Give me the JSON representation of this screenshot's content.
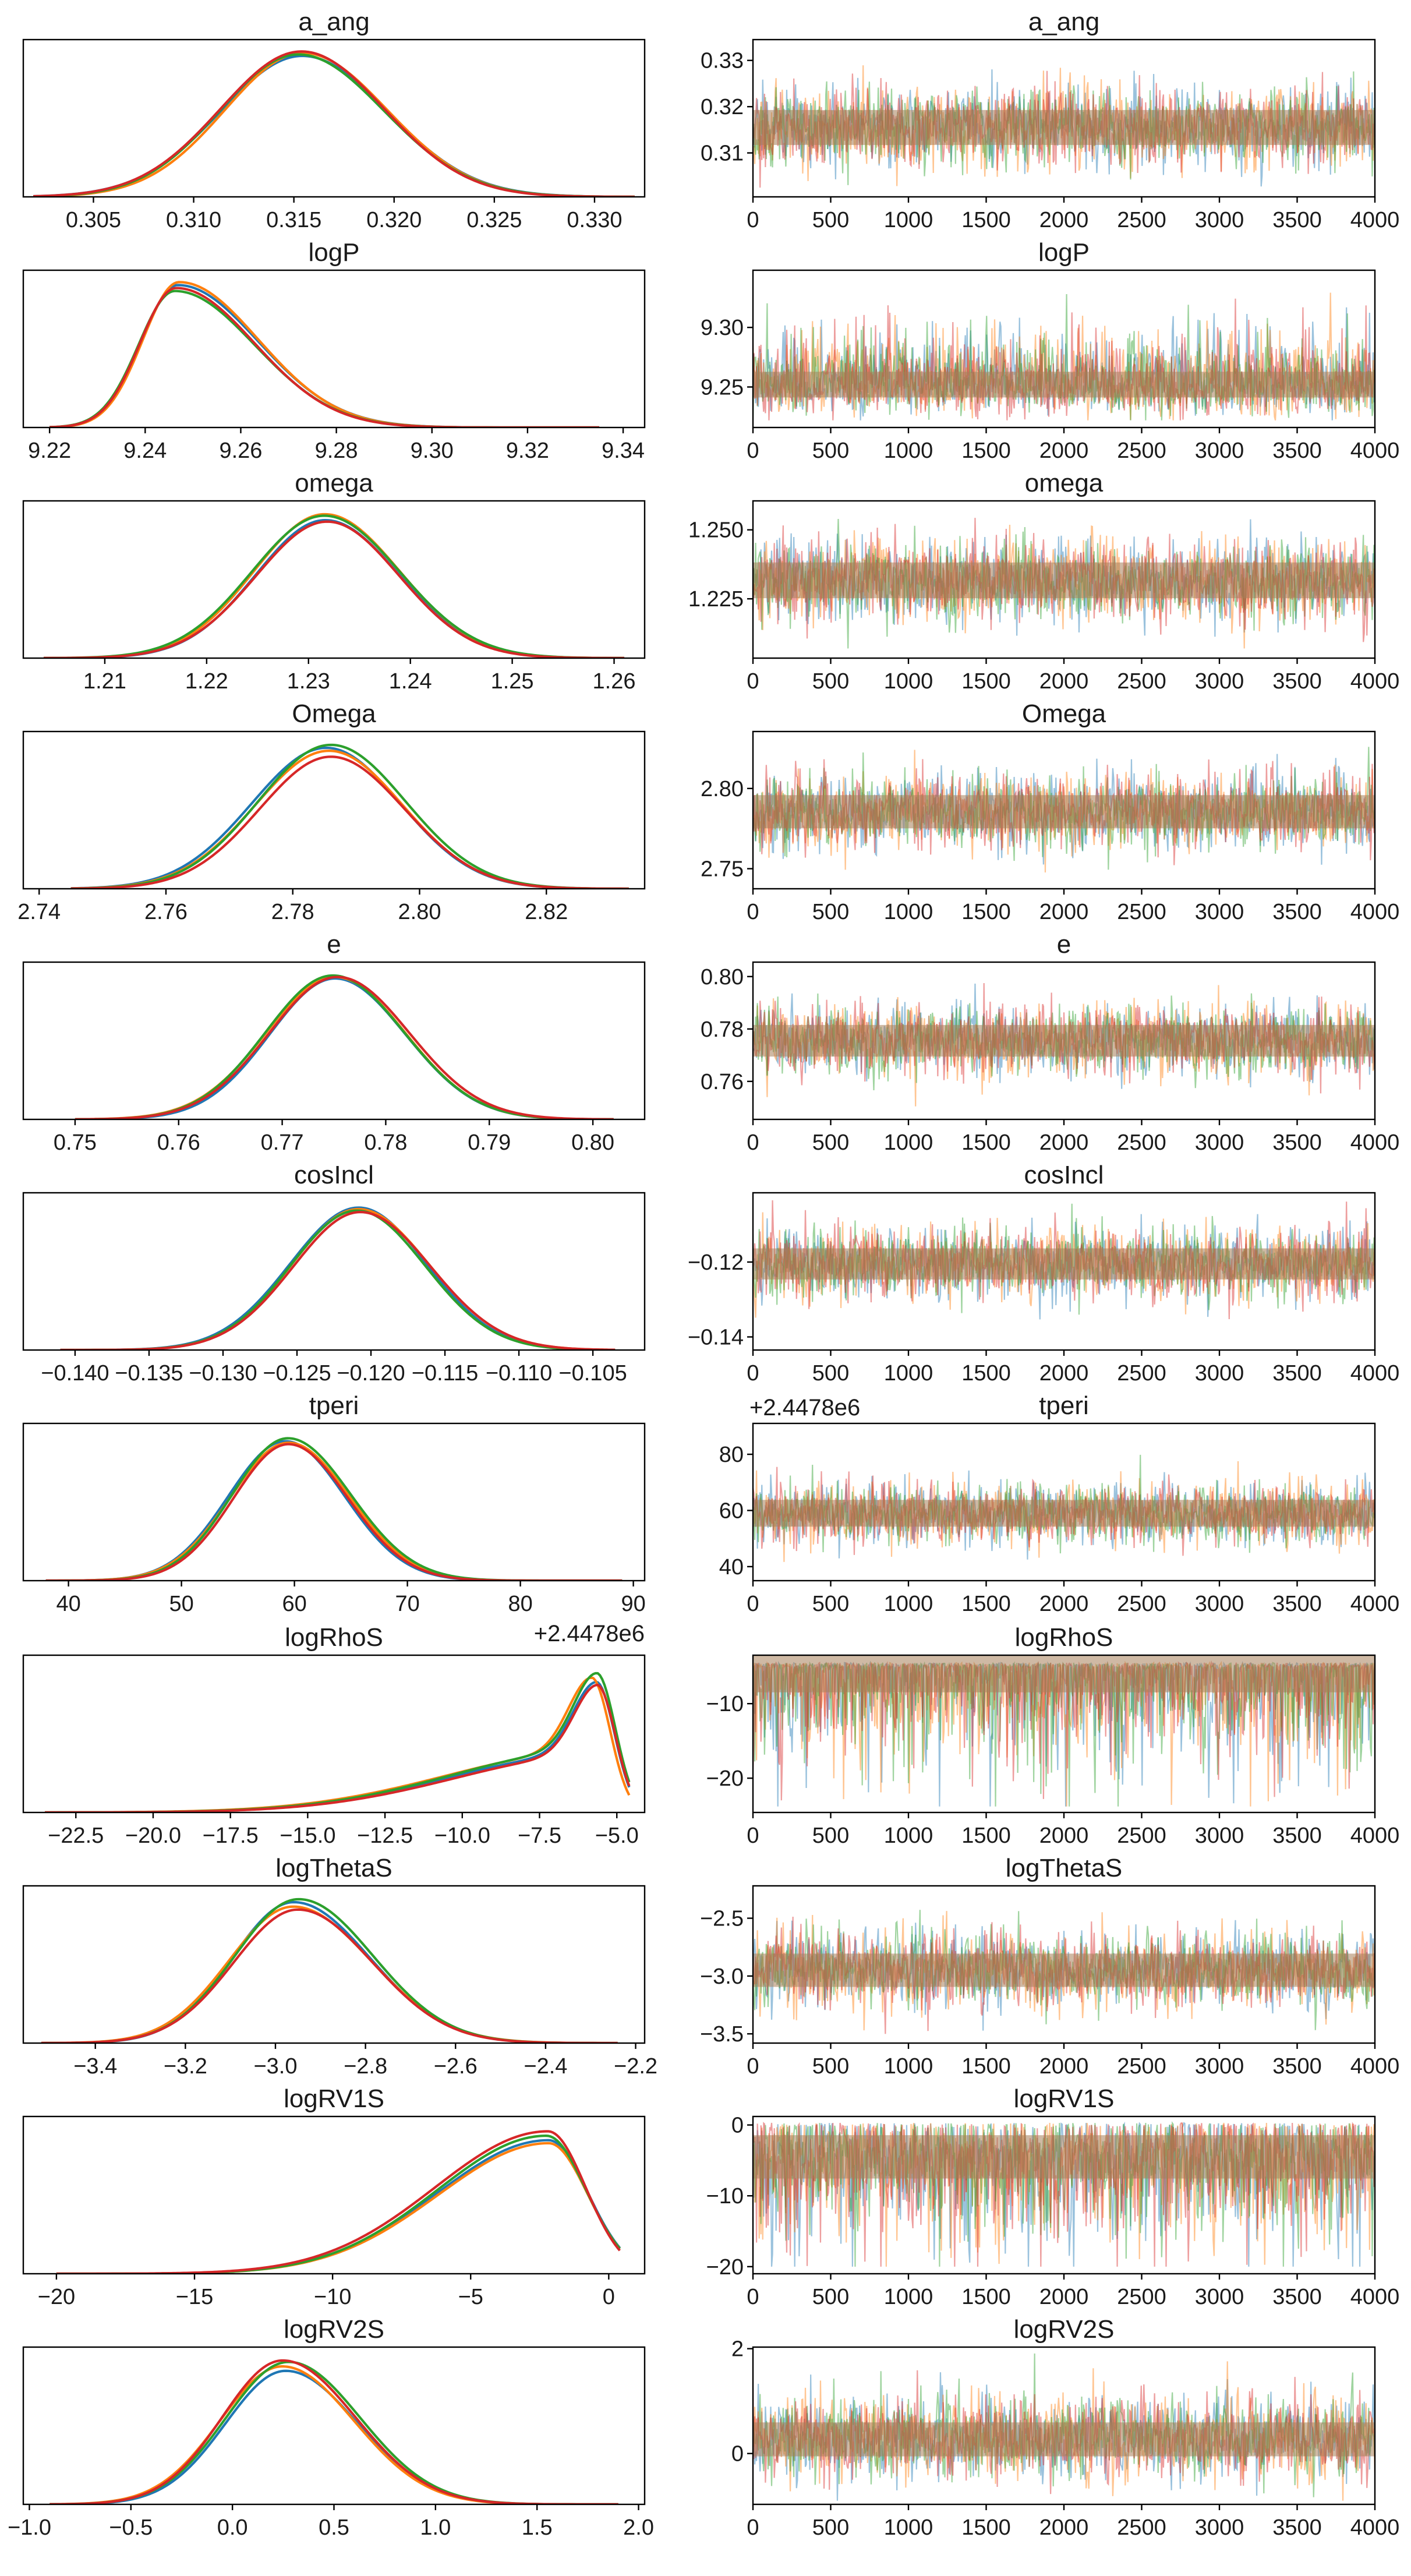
{
  "figure": {
    "kde_colors": [
      "#1f77b4",
      "#ff7f0e",
      "#2ca02c",
      "#d62728"
    ],
    "trace_colors": [
      "#1f77b4",
      "#ff7f0e",
      "#2ca02c",
      "#d62728"
    ],
    "trace_overlay_color": "#a8805a"
  },
  "chart_data": [
    {
      "type": "line",
      "panel": "kde",
      "title": "a_ang",
      "xlim": [
        0.3015,
        0.3325
      ],
      "xticks": [
        0.305,
        0.31,
        0.315,
        0.32,
        0.325,
        0.33
      ],
      "xtick_labels": [
        "0.305",
        "0.310",
        "0.315",
        "0.320",
        "0.325",
        "0.330"
      ],
      "offset_text": "",
      "dist": {
        "mode": 0.3153,
        "left_width": 0.004,
        "right_width": 0.0042,
        "xmin": 0.302,
        "xmax": 0.332
      },
      "series_peaks": [
        0.95,
        0.97,
        0.96,
        0.98
      ]
    },
    {
      "type": "line",
      "panel": "trace",
      "title": "a_ang",
      "xlim": [
        0,
        4000
      ],
      "ylim": [
        0.3005,
        0.3345
      ],
      "xticks": [
        0,
        500,
        1000,
        1500,
        2000,
        2500,
        3000,
        3500,
        4000
      ],
      "xtick_labels": [
        "0",
        "500",
        "1000",
        "1500",
        "2000",
        "2500",
        "3000",
        "3500",
        "4000"
      ],
      "yticks": [
        0.31,
        0.32,
        0.33
      ],
      "ytick_labels": [
        "0.31",
        "0.32",
        "0.33"
      ],
      "offset_text": "",
      "trace": {
        "center": 0.3155,
        "sd": 0.0042,
        "clip_min": 0.3025,
        "clip_max": 0.333,
        "skew": 0
      }
    },
    {
      "type": "line",
      "panel": "kde",
      "title": "logP",
      "xlim": [
        9.2145,
        9.3445
      ],
      "xticks": [
        9.22,
        9.24,
        9.26,
        9.28,
        9.3,
        9.32,
        9.34
      ],
      "xtick_labels": [
        "9.22",
        "9.24",
        "9.26",
        "9.28",
        "9.30",
        "9.32",
        "9.34"
      ],
      "offset_text": "",
      "dist": {
        "mode": 9.2465,
        "left_width": 0.0075,
        "right_width": 0.0165,
        "xmin": 9.22,
        "xmax": 9.335
      },
      "series_peaks": [
        0.96,
        0.98,
        0.92,
        0.94
      ]
    },
    {
      "type": "line",
      "panel": "trace",
      "title": "logP",
      "xlim": [
        0,
        4000
      ],
      "ylim": [
        9.216,
        9.348
      ],
      "xticks": [
        0,
        500,
        1000,
        1500,
        2000,
        2500,
        3000,
        3500,
        4000
      ],
      "xtick_labels": [
        "0",
        "500",
        "1000",
        "1500",
        "2000",
        "2500",
        "3000",
        "3500",
        "4000"
      ],
      "yticks": [
        9.25,
        9.3
      ],
      "ytick_labels": [
        "9.25",
        "9.30"
      ],
      "offset_text": "",
      "trace": {
        "center": 9.252,
        "sd": 0.012,
        "clip_min": 9.222,
        "clip_max": 9.338,
        "skew": 1.6
      }
    },
    {
      "type": "line",
      "panel": "kde",
      "title": "omega",
      "xlim": [
        1.202,
        1.263
      ],
      "xticks": [
        1.21,
        1.22,
        1.23,
        1.24,
        1.25,
        1.26
      ],
      "xtick_labels": [
        "1.21",
        "1.22",
        "1.23",
        "1.24",
        "1.25",
        "1.26"
      ],
      "offset_text": "",
      "dist": {
        "mode": 1.2317,
        "left_width": 0.007,
        "right_width": 0.0072,
        "xmin": 1.204,
        "xmax": 1.261
      },
      "series_peaks": [
        0.93,
        0.97,
        0.96,
        0.92
      ]
    },
    {
      "type": "line",
      "panel": "trace",
      "title": "omega",
      "xlim": [
        0,
        4000
      ],
      "ylim": [
        1.2035,
        1.2605
      ],
      "xticks": [
        0,
        500,
        1000,
        1500,
        2000,
        2500,
        3000,
        3500,
        4000
      ],
      "xtick_labels": [
        "0",
        "500",
        "1000",
        "1500",
        "2000",
        "2500",
        "3000",
        "3500",
        "4000"
      ],
      "yticks": [
        1.225,
        1.25
      ],
      "ytick_labels": [
        "1.225",
        "1.250"
      ],
      "offset_text": "",
      "trace": {
        "center": 1.2317,
        "sd": 0.0072,
        "clip_min": 1.207,
        "clip_max": 1.258,
        "skew": 0
      }
    },
    {
      "type": "line",
      "panel": "kde",
      "title": "Omega",
      "xlim": [
        2.7375,
        2.8355
      ],
      "xticks": [
        2.74,
        2.76,
        2.78,
        2.8,
        2.82
      ],
      "xtick_labels": [
        "2.74",
        "2.76",
        "2.78",
        "2.80",
        "2.82"
      ],
      "offset_text": "",
      "dist": {
        "mode": 2.7855,
        "left_width": 0.0115,
        "right_width": 0.0115,
        "xmin": 2.745,
        "xmax": 2.833
      },
      "series_peaks": [
        0.95,
        0.93,
        0.97,
        0.89
      ]
    },
    {
      "type": "line",
      "panel": "trace",
      "title": "Omega",
      "xlim": [
        0,
        4000
      ],
      "ylim": [
        2.7375,
        2.8355
      ],
      "xticks": [
        0,
        500,
        1000,
        1500,
        2000,
        2500,
        3000,
        3500,
        4000
      ],
      "xtick_labels": [
        "0",
        "500",
        "1000",
        "1500",
        "2000",
        "2500",
        "3000",
        "3500",
        "4000"
      ],
      "yticks": [
        2.75,
        2.8
      ],
      "ytick_labels": [
        "2.75",
        "2.80"
      ],
      "offset_text": "",
      "trace": {
        "center": 2.7855,
        "sd": 0.0115,
        "clip_min": 2.744,
        "clip_max": 2.832,
        "skew": 0
      }
    },
    {
      "type": "line",
      "panel": "kde",
      "title": "e",
      "xlim": [
        0.745,
        0.805
      ],
      "xticks": [
        0.75,
        0.76,
        0.77,
        0.78,
        0.79,
        0.8
      ],
      "xtick_labels": [
        "0.75",
        "0.76",
        "0.77",
        "0.78",
        "0.79",
        "0.80"
      ],
      "offset_text": "",
      "dist": {
        "mode": 0.7752,
        "left_width": 0.0065,
        "right_width": 0.0068,
        "xmin": 0.75,
        "xmax": 0.802
      },
      "series_peaks": [
        0.95,
        0.96,
        0.97,
        0.96
      ]
    },
    {
      "type": "line",
      "panel": "trace",
      "title": "e",
      "xlim": [
        0,
        4000
      ],
      "ylim": [
        0.7455,
        0.8055
      ],
      "xticks": [
        0,
        500,
        1000,
        1500,
        2000,
        2500,
        3000,
        3500,
        4000
      ],
      "xtick_labels": [
        "0",
        "500",
        "1000",
        "1500",
        "2000",
        "2500",
        "3000",
        "3500",
        "4000"
      ],
      "yticks": [
        0.76,
        0.78,
        0.8
      ],
      "ytick_labels": [
        "0.76",
        "0.78",
        "0.80"
      ],
      "offset_text": "",
      "trace": {
        "center": 0.7755,
        "sd": 0.0067,
        "clip_min": 0.7485,
        "clip_max": 0.803,
        "skew": 0
      }
    },
    {
      "type": "line",
      "panel": "kde",
      "title": "cosIncl",
      "xlim": [
        -0.1435,
        -0.1015
      ],
      "xticks": [
        -0.14,
        -0.135,
        -0.13,
        -0.125,
        -0.12,
        -0.115,
        -0.11,
        -0.105
      ],
      "xtick_labels": [
        "−0.140",
        "−0.135",
        "−0.130",
        "−0.125",
        "−0.120",
        "−0.115",
        "−0.110",
        "−0.105"
      ],
      "offset_text": "",
      "dist": {
        "mode": -0.1208,
        "left_width": 0.0046,
        "right_width": 0.0047,
        "xmin": -0.141,
        "xmax": -0.1035
      },
      "series_peaks": [
        0.96,
        0.95,
        0.94,
        0.93
      ]
    },
    {
      "type": "line",
      "panel": "trace",
      "title": "cosIncl",
      "xlim": [
        0,
        4000
      ],
      "ylim": [
        -0.1435,
        -0.1015
      ],
      "xticks": [
        0,
        500,
        1000,
        1500,
        2000,
        2500,
        3000,
        3500,
        4000
      ],
      "xtick_labels": [
        "0",
        "500",
        "1000",
        "1500",
        "2000",
        "2500",
        "3000",
        "3500",
        "4000"
      ],
      "yticks": [
        -0.14,
        -0.12
      ],
      "ytick_labels": [
        "−0.14",
        "−0.12"
      ],
      "offset_text": "",
      "trace": {
        "center": -0.1205,
        "sd": 0.0046,
        "clip_min": -0.1415,
        "clip_max": -0.1035,
        "skew": 0
      }
    },
    {
      "type": "line",
      "panel": "kde",
      "title": "tperi",
      "xlim": [
        36.0,
        91.0
      ],
      "xticks": [
        40,
        50,
        60,
        70,
        80,
        90
      ],
      "xtick_labels": [
        "40",
        "50",
        "60",
        "70",
        "80",
        "90"
      ],
      "offset_text": "+2.4478e6",
      "dist": {
        "mode": 59.3,
        "left_width": 5.0,
        "right_width": 5.4,
        "xmin": 38.0,
        "xmax": 89.0
      },
      "series_peaks": [
        0.94,
        0.93,
        0.96,
        0.92
      ]
    },
    {
      "type": "line",
      "panel": "trace",
      "title": "tperi",
      "xlim": [
        0,
        4000
      ],
      "ylim": [
        35.0,
        91.0
      ],
      "xticks": [
        0,
        500,
        1000,
        1500,
        2000,
        2500,
        3000,
        3500,
        4000
      ],
      "xtick_labels": [
        "0",
        "500",
        "1000",
        "1500",
        "2000",
        "2500",
        "3000",
        "3500",
        "4000"
      ],
      "yticks": [
        40,
        60,
        80
      ],
      "ytick_labels": [
        "40",
        "60",
        "80"
      ],
      "offset_text": "+2.4478e6",
      "trace": {
        "center": 59.0,
        "sd": 5.3,
        "clip_min": 37.0,
        "clip_max": 88.0,
        "skew": 0
      }
    },
    {
      "type": "line",
      "panel": "kde",
      "title": "logRhoS",
      "xlim": [
        -24.2,
        -4.1
      ],
      "xticks": [
        -22.5,
        -20.0,
        -17.5,
        -15.0,
        -12.5,
        -10.0,
        -7.5,
        -5.0
      ],
      "xtick_labels": [
        "−22.5",
        "−20.0",
        "−17.5",
        "−15.0",
        "−12.5",
        "−10.0",
        "−7.5",
        "−5.0"
      ],
      "offset_text": "",
      "dist": {
        "mode": -5.7,
        "left_width": 4.6,
        "right_width": 0.55,
        "xmin": -23.5,
        "xmax": -4.6,
        "peak_sharp": 0.55,
        "peak_width": 0.75
      },
      "series_peaks": [
        0.88,
        0.91,
        0.94,
        0.86
      ]
    },
    {
      "type": "line",
      "panel": "trace",
      "title": "logRhoS",
      "xlim": [
        0,
        4000
      ],
      "ylim": [
        -24.6,
        -3.5
      ],
      "xticks": [
        0,
        500,
        1000,
        1500,
        2000,
        2500,
        3000,
        3500,
        4000
      ],
      "xtick_labels": [
        "0",
        "500",
        "1000",
        "1500",
        "2000",
        "2500",
        "3000",
        "3500",
        "4000"
      ],
      "yticks": [
        -20,
        -10
      ],
      "ytick_labels": [
        "−20",
        "−10"
      ],
      "offset_text": "",
      "trace": {
        "center": -5.6,
        "sd": 3.2,
        "clip_min": -23.8,
        "clip_max": -4.5,
        "skew": -1
      }
    },
    {
      "type": "line",
      "panel": "kde",
      "title": "logThetaS",
      "xlim": [
        -3.56,
        -2.18
      ],
      "xticks": [
        -3.4,
        -3.2,
        -3.0,
        -2.8,
        -2.6,
        -2.4,
        -2.2
      ],
      "xtick_labels": [
        "−3.4",
        "−3.2",
        "−3.0",
        "−2.8",
        "−2.6",
        "−2.4",
        "−2.2"
      ],
      "offset_text": "",
      "dist": {
        "mode": -2.955,
        "left_width": 0.14,
        "right_width": 0.17,
        "xmin": -3.52,
        "xmax": -2.24
      },
      "series_peaks": [
        0.95,
        0.92,
        0.97,
        0.9
      ]
    },
    {
      "type": "line",
      "panel": "trace",
      "title": "logThetaS",
      "xlim": [
        0,
        4000
      ],
      "ylim": [
        -3.58,
        -2.22
      ],
      "xticks": [
        0,
        500,
        1000,
        1500,
        2000,
        2500,
        3000,
        3500,
        4000
      ],
      "xtick_labels": [
        "0",
        "500",
        "1000",
        "1500",
        "2000",
        "2500",
        "3000",
        "3500",
        "4000"
      ],
      "yticks": [
        -3.5,
        -3.0,
        -2.5
      ],
      "ytick_labels": [
        "−3.5",
        "−3.0",
        "−2.5"
      ],
      "offset_text": "",
      "trace": {
        "center": -2.95,
        "sd": 0.16,
        "clip_min": -3.55,
        "clip_max": -2.28,
        "skew": 0
      }
    },
    {
      "type": "line",
      "panel": "kde",
      "title": "logRV1S",
      "xlim": [
        -21.2,
        1.3
      ],
      "xticks": [
        -20,
        -15,
        -10,
        -5,
        0
      ],
      "xtick_labels": [
        "−20",
        "−15",
        "−10",
        "−5",
        "0"
      ],
      "offset_text": "",
      "dist": {
        "mode": -2.3,
        "left_width": 4.0,
        "right_width": 1.4,
        "xmin": -20.0,
        "xmax": 0.4
      },
      "series_peaks": [
        0.9,
        0.88,
        0.93,
        0.96
      ]
    },
    {
      "type": "line",
      "panel": "trace",
      "title": "logRV1S",
      "xlim": [
        0,
        4000
      ],
      "ylim": [
        -21.0,
        1.2
      ],
      "xticks": [
        0,
        500,
        1000,
        1500,
        2000,
        2500,
        3000,
        3500,
        4000
      ],
      "xtick_labels": [
        "0",
        "500",
        "1000",
        "1500",
        "2000",
        "2500",
        "3000",
        "3500",
        "4000"
      ],
      "yticks": [
        -20,
        -10,
        0
      ],
      "ytick_labels": [
        "−20",
        "−10",
        "0"
      ],
      "offset_text": "",
      "trace": {
        "center": -4.5,
        "sd": 3.4,
        "clip_min": -20.0,
        "clip_max": 0.3,
        "skew": -0.8
      }
    },
    {
      "type": "line",
      "panel": "kde",
      "title": "logRV2S",
      "xlim": [
        -1.03,
        2.03
      ],
      "xticks": [
        -1.0,
        -0.5,
        0.0,
        0.5,
        1.0,
        1.5,
        2.0
      ],
      "xtick_labels": [
        "−1.0",
        "−0.5",
        "0.0",
        "0.5",
        "1.0",
        "1.5",
        "2.0"
      ],
      "offset_text": "",
      "dist": {
        "mode": 0.26,
        "left_width": 0.3,
        "right_width": 0.36,
        "xmin": -0.9,
        "xmax": 1.9
      },
      "series_peaks": [
        0.9,
        0.93,
        0.96,
        0.97
      ]
    },
    {
      "type": "line",
      "panel": "trace",
      "title": "logRV2S",
      "xlim": [
        0,
        4000
      ],
      "ylim": [
        -0.97,
        2.03
      ],
      "xticks": [
        0,
        500,
        1000,
        1500,
        2000,
        2500,
        3000,
        3500,
        4000
      ],
      "xtick_labels": [
        "0",
        "500",
        "1000",
        "1500",
        "2000",
        "2500",
        "3000",
        "3500",
        "4000"
      ],
      "yticks": [
        0,
        2
      ],
      "ytick_labels": [
        "0",
        "2"
      ],
      "offset_text": "",
      "trace": {
        "center": 0.27,
        "sd": 0.36,
        "clip_min": -0.9,
        "clip_max": 1.95,
        "skew": 0.3
      }
    }
  ]
}
